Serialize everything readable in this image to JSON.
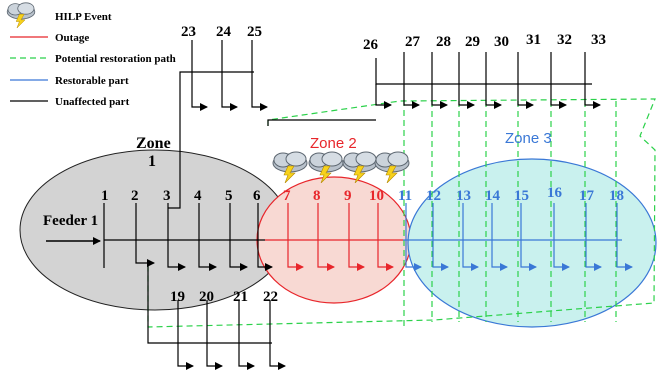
{
  "legend": {
    "hilp_event": "HILP Event",
    "outage": "Outage",
    "potential_restoration_path": "Potential restoration path",
    "restorable_part": "Restorable part",
    "unaffected_part": "Unaffected part"
  },
  "feeder_label": "Feeder 1",
  "zones": {
    "zone1": "Zone 1",
    "zone2": "Zone 2",
    "zone3": "Zone 3"
  },
  "colors": {
    "outage": "#e8262b",
    "restoration_path": "#2bd14a",
    "restorable": "#3a78d6",
    "unaffected": "#000000",
    "zone1_fill": "#d3d3d3",
    "zone2_fill": "#f8d9d3",
    "zone3_fill": "#c9f1ee"
  },
  "nodes": {
    "main": [
      "1",
      "2",
      "3",
      "4",
      "5",
      "6",
      "7",
      "8",
      "9",
      "10",
      "11",
      "12",
      "13",
      "14",
      "15",
      "16",
      "17",
      "18"
    ],
    "top_left": [
      "23",
      "24",
      "25"
    ],
    "top_right": [
      "26",
      "27",
      "28",
      "29",
      "30",
      "31",
      "32",
      "33"
    ],
    "bottom": [
      "19",
      "20",
      "21",
      "22"
    ]
  },
  "icons": [
    "storm-cloud-icon",
    "storm-cloud-icon",
    "storm-cloud-icon",
    "storm-cloud-icon"
  ]
}
